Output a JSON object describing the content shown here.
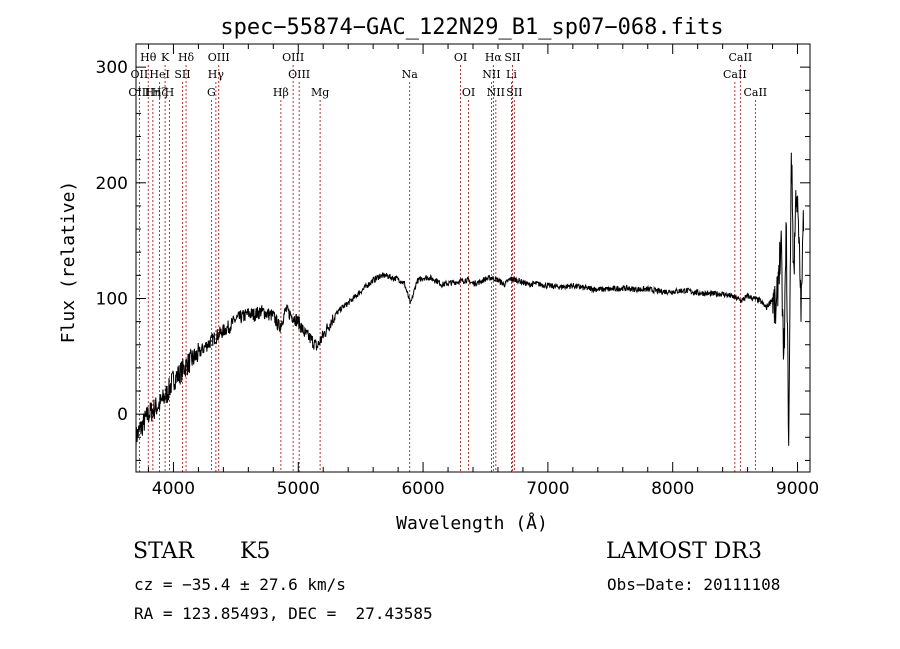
{
  "chart_data": {
    "type": "line",
    "title": "spec−55874−GAC_122N29_B1_sp07−068.fits",
    "xlabel": "Wavelength (Å)",
    "ylabel": "Flux (relative)",
    "xlim": [
      3700,
      9100
    ],
    "ylim": [
      -50,
      320
    ],
    "xticks": [
      4000,
      5000,
      6000,
      7000,
      8000,
      9000
    ],
    "yticks": [
      0,
      100,
      200,
      300
    ],
    "line_color": "#000000",
    "marker_color": "#aa0000",
    "series": [
      {
        "name": "flux",
        "x": [
          3700,
          3750,
          3800,
          3850,
          3900,
          3950,
          4000,
          4050,
          4100,
          4150,
          4200,
          4250,
          4300,
          4350,
          4400,
          4450,
          4500,
          4550,
          4600,
          4650,
          4700,
          4750,
          4800,
          4850,
          4900,
          4950,
          5000,
          5050,
          5100,
          5150,
          5200,
          5250,
          5300,
          5350,
          5400,
          5450,
          5500,
          5550,
          5600,
          5650,
          5700,
          5750,
          5800,
          5850,
          5900,
          5950,
          6000,
          6050,
          6100,
          6150,
          6200,
          6250,
          6300,
          6350,
          6400,
          6450,
          6500,
          6550,
          6600,
          6650,
          6700,
          6750,
          6800,
          6850,
          6900,
          7000,
          7100,
          7200,
          7300,
          7400,
          7500,
          7600,
          7700,
          7800,
          7900,
          8000,
          8100,
          8200,
          8300,
          8400,
          8500,
          8550,
          8600,
          8650,
          8700,
          8750,
          8800,
          8830,
          8850,
          8870,
          8890,
          8910,
          8930,
          8950,
          8970,
          8990,
          9010,
          9030,
          9050
        ],
        "y": [
          -20,
          -10,
          0,
          5,
          10,
          18,
          30,
          35,
          42,
          47,
          52,
          58,
          63,
          68,
          72,
          76,
          82,
          84,
          87,
          86,
          89,
          87,
          85,
          75,
          90,
          85,
          80,
          70,
          65,
          58,
          68,
          78,
          86,
          92,
          96,
          101,
          106,
          111,
          116,
          119,
          120,
          118,
          117,
          113,
          95,
          115,
          118,
          118,
          116,
          112,
          113,
          114,
          115,
          116,
          113,
          114,
          117,
          118,
          116,
          112,
          117,
          116,
          114,
          112,
          113,
          111,
          110,
          111,
          109,
          108,
          108,
          109,
          108,
          108,
          106,
          106,
          107,
          105,
          104,
          104,
          101,
          98,
          102,
          100,
          98,
          92,
          100,
          85,
          130,
          140,
          40,
          160,
          -30,
          230,
          120,
          200,
          150,
          90,
          180
        ]
      }
    ],
    "line_markers": [
      {
        "label": "Hθ",
        "x": 3798,
        "row": 0
      },
      {
        "label": "OII",
        "x": 3727,
        "row": 1
      },
      {
        "label": "OIII",
        "x": 3727,
        "row": 2
      },
      {
        "label": "K",
        "x": 3933,
        "row": 0
      },
      {
        "label": "HeI",
        "x": 3889,
        "row": 1
      },
      {
        "label": "Hη",
        "x": 3835,
        "row": 2
      },
      {
        "label": "Hζ",
        "x": 3889,
        "row": 2
      },
      {
        "label": "SII",
        "x": 4072,
        "row": 1
      },
      {
        "label": "H",
        "x": 3968,
        "row": 2
      },
      {
        "label": "Hδ",
        "x": 4101,
        "row": 0
      },
      {
        "label": "OIII",
        "x": 4363,
        "row": 0
      },
      {
        "label": "Hγ",
        "x": 4340,
        "row": 1
      },
      {
        "label": "G",
        "x": 4304,
        "row": 2
      },
      {
        "label": "OIII",
        "x": 4959,
        "row": 0
      },
      {
        "label": "OIII",
        "x": 5007,
        "row": 1
      },
      {
        "label": "Hβ",
        "x": 4861,
        "row": 2
      },
      {
        "label": "Mg",
        "x": 5175,
        "row": 2
      },
      {
        "label": "Na",
        "x": 5893,
        "row": 1
      },
      {
        "label": "OI",
        "x": 6300,
        "row": 0
      },
      {
        "label": "OI",
        "x": 6364,
        "row": 2
      },
      {
        "label": "Hα",
        "x": 6563,
        "row": 0
      },
      {
        "label": "SII",
        "x": 6716,
        "row": 0
      },
      {
        "label": "NII",
        "x": 6548,
        "row": 1
      },
      {
        "label": "Li",
        "x": 6708,
        "row": 1
      },
      {
        "label": "NII",
        "x": 6583,
        "row": 2
      },
      {
        "label": "SII",
        "x": 6731,
        "row": 2
      },
      {
        "label": "CaII",
        "x": 8542,
        "row": 0
      },
      {
        "label": "CaII",
        "x": 8498,
        "row": 1
      },
      {
        "label": "CaII",
        "x": 8662,
        "row": 2
      }
    ]
  },
  "info": {
    "class_label": "STAR",
    "subclass": "K5",
    "survey": "LAMOST DR3",
    "redshift_line": "cz = −35.4 ± 27.6 km/s",
    "obs_date_line": "Obs−Date: 20111108",
    "coords_line": "RA = 123.85493, DEC =  27.43585"
  }
}
